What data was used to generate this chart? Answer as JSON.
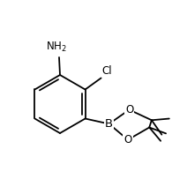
{
  "background_color": "#ffffff",
  "line_color": "#000000",
  "line_width": 1.3,
  "font_size": 8.5,
  "nh2_label": "NH$_2$",
  "cl_label": "Cl",
  "b_label": "B",
  "o_label": "O",
  "figsize": [
    2.12,
    2.2
  ],
  "dpi": 100
}
